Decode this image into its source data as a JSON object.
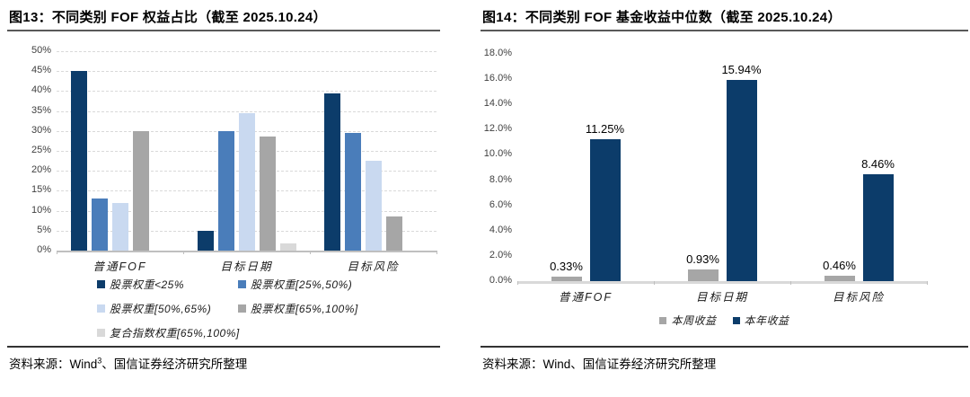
{
  "chart_data": [
    {
      "id": "fig13",
      "type": "bar",
      "title": "图13：不同类别 FOF 权益占比（截至 2025.10.24）",
      "categories": [
        "普通FOF",
        "目标日期",
        "目标风险"
      ],
      "series": [
        {
          "name": "股票权重<25%",
          "color": "#0c3c6a",
          "values": [
            45,
            5,
            39.5
          ]
        },
        {
          "name": "股票权重[25%,50%)",
          "color": "#4a7dba",
          "values": [
            13,
            30,
            29.5
          ]
        },
        {
          "name": "股票权重[50%,65%)",
          "color": "#c9d9f0",
          "values": [
            12,
            34.5,
            22.5
          ]
        },
        {
          "name": "股票权重[65%,100%]",
          "color": "#a6a6a6",
          "values": [
            30,
            28.5,
            8.5
          ]
        },
        {
          "name": "复合指数权重[65%,100%]",
          "color": "#d9d9d9",
          "values": [
            0,
            1.7,
            0
          ]
        }
      ],
      "ylim": [
        0,
        50
      ],
      "ytick_step": 5,
      "ytick_format": "int_percent",
      "grid": "dashed-horizontal",
      "legend_position": "bottom-left-two-columns",
      "data_labels": false
    },
    {
      "id": "fig14",
      "type": "bar",
      "title": "图14：不同类别 FOF 基金收益中位数（截至 2025.10.24）",
      "categories": [
        "普通FOF",
        "目标日期",
        "目标风险"
      ],
      "series": [
        {
          "name": "本周收益",
          "color": "#a6a6a6",
          "values": [
            0.33,
            0.93,
            0.46
          ]
        },
        {
          "name": "本年收益",
          "color": "#0c3c6a",
          "values": [
            11.25,
            15.94,
            8.46
          ]
        }
      ],
      "ylim": [
        0,
        18
      ],
      "ytick_step": 2,
      "ytick_format": "one_decimal_percent",
      "grid": "none",
      "legend_position": "bottom-center",
      "data_labels": true,
      "data_label_format": "two_decimal_percent"
    }
  ],
  "sources": {
    "left": {
      "prefix": "资料来源：Wind",
      "sup": "3",
      "suffix": "、国信证券经济研究所整理"
    },
    "right": {
      "text": "资料来源：Wind、国信证券经济研究所整理"
    }
  },
  "colors": {
    "navy": "#0c3c6a",
    "medium_blue": "#4a7dba",
    "light_blue": "#c9d9f0",
    "gray": "#a6a6a6",
    "light_gray": "#d9d9d9"
  }
}
